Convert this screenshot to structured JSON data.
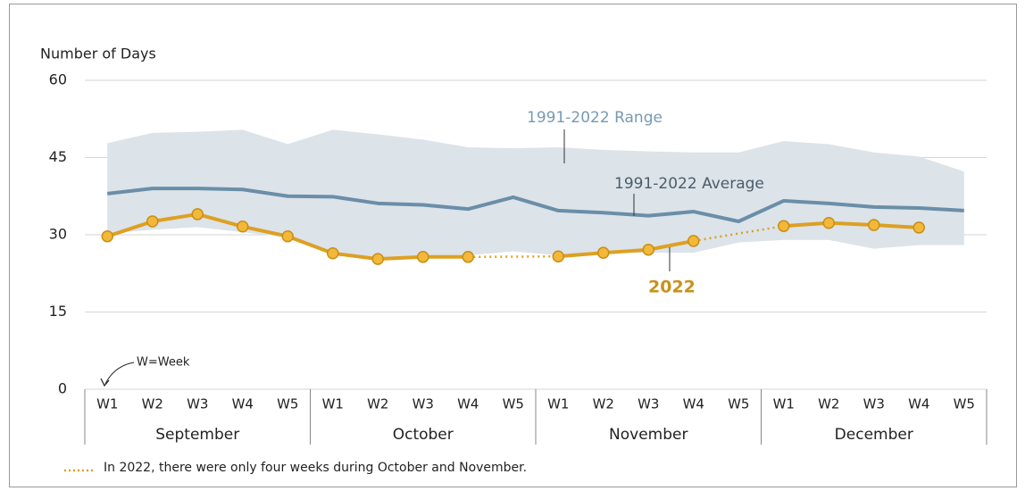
{
  "chart_data": {
    "type": "line",
    "y_label": "Number of Days",
    "categories": [
      "W1",
      "W2",
      "W3",
      "W4",
      "W5",
      "W1",
      "W2",
      "W3",
      "W4",
      "W5",
      "W1",
      "W2",
      "W3",
      "W4",
      "W5",
      "W1",
      "W2",
      "W3",
      "W4",
      "W5"
    ],
    "groups": [
      "September",
      "October",
      "November",
      "December"
    ],
    "ylim": [
      0,
      60
    ],
    "yticks": [
      0,
      15,
      30,
      45,
      60
    ],
    "grid": true,
    "series": [
      {
        "name": "1991-2022 Range",
        "color": "#dce3e9",
        "low": [
          30.2,
          31.0,
          31.5,
          30.5,
          29.5,
          26.5,
          25.5,
          25.8,
          26.0,
          26.8,
          26.0,
          26.5,
          26.5,
          26.5,
          28.5,
          29.0,
          29.0,
          27.3,
          28.0,
          28.0
        ],
        "high": [
          47.8,
          49.8,
          50.0,
          50.4,
          47.6,
          50.4,
          49.5,
          48.5,
          47.0,
          46.8,
          47.0,
          46.5,
          46.2,
          46.0,
          46.0,
          48.2,
          47.6,
          46.0,
          45.2,
          42.3
        ]
      },
      {
        "name": "1991-2022 Average",
        "color": "#6a8ea8",
        "values": [
          38.0,
          39.0,
          39.0,
          38.8,
          37.5,
          37.4,
          36.1,
          35.8,
          35.0,
          37.3,
          34.7,
          34.3,
          33.7,
          34.5,
          32.6,
          36.6,
          36.1,
          35.4,
          35.2,
          34.7
        ]
      },
      {
        "name": "2022",
        "color": "#dda022",
        "values": [
          29.7,
          32.6,
          34.0,
          31.6,
          29.7,
          26.4,
          25.3,
          25.7,
          25.7,
          null,
          25.8,
          26.5,
          27.1,
          28.8,
          null,
          31.7,
          32.3,
          31.9,
          31.4,
          null
        ]
      }
    ],
    "annotation": "W=Week",
    "footnote": "In 2022, there were only four weeks during October and November."
  }
}
